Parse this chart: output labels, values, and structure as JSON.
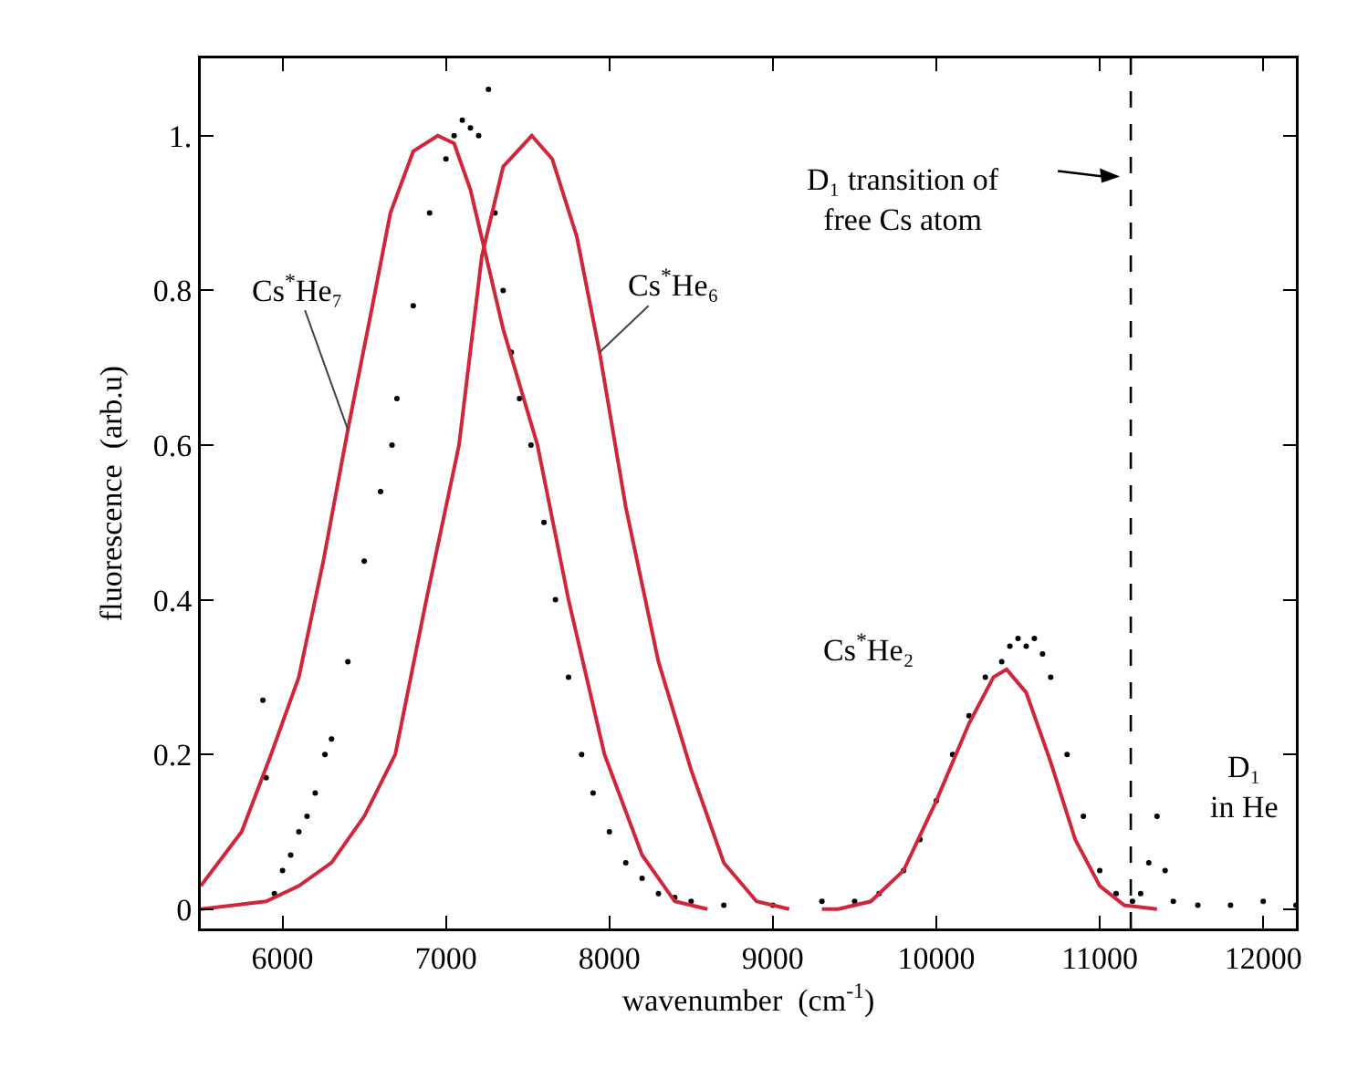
{
  "chart_data": {
    "type": "line",
    "xlabel": "wavenumber  (cm$^{-1}$)",
    "ylabel": "fluorescence  (arb.u)",
    "xlim": [
      5500,
      12200
    ],
    "xticks": [
      6000,
      7000,
      8000,
      9000,
      10000,
      11000,
      12000
    ],
    "ylim": [
      -0.025,
      1.1
    ],
    "yticks": [
      0,
      0.2,
      0.4,
      0.6,
      0.8,
      {
        "value": 1,
        "label": "1."
      }
    ],
    "grid": false,
    "series": [
      {
        "type": "scatter",
        "marker": "circle",
        "color": "#000000",
        "x": [
          5880,
          5900,
          5950,
          6000,
          6050,
          6100,
          6150,
          6200,
          6260,
          6300,
          6400,
          6500,
          6600,
          6670,
          6700,
          6800,
          6900,
          7000,
          7050,
          7100,
          7150,
          7200,
          7260,
          7300,
          7350,
          7400,
          7450,
          7520,
          7600,
          7670,
          7750,
          7830,
          7900,
          8000,
          8100,
          8200,
          8300,
          8400,
          8500,
          8700,
          9000,
          9300,
          9500,
          9650,
          9800,
          9900,
          10000,
          10100,
          10200,
          10300,
          10400,
          10450,
          10500,
          10550,
          10600,
          10650,
          10700,
          10800,
          10900,
          11000,
          11100,
          11200,
          11250,
          11300,
          11350,
          11400,
          11450,
          11600,
          11800,
          12000,
          12200
        ],
        "values": [
          0.27,
          0.17,
          0.02,
          0.05,
          0.07,
          0.1,
          0.12,
          0.15,
          0.2,
          0.22,
          0.32,
          0.45,
          0.54,
          0.6,
          0.66,
          0.78,
          0.9,
          0.97,
          1.0,
          1.02,
          1.01,
          1.0,
          1.06,
          0.9,
          0.8,
          0.72,
          0.66,
          0.6,
          0.5,
          0.4,
          0.3,
          0.2,
          0.15,
          0.1,
          0.06,
          0.04,
          0.02,
          0.015,
          0.01,
          0.005,
          0.005,
          0.01,
          0.01,
          0.02,
          0.05,
          0.09,
          0.14,
          0.2,
          0.25,
          0.3,
          0.32,
          0.34,
          0.35,
          0.34,
          0.35,
          0.33,
          0.3,
          0.2,
          0.12,
          0.05,
          0.02,
          0.01,
          0.02,
          0.06,
          0.12,
          0.05,
          0.01,
          0.005,
          0.005,
          0.01,
          0.005
        ]
      },
      {
        "color": "#d0263b",
        "x": [
          5500,
          5750,
          5930,
          6100,
          6250,
          6400,
          6550,
          6660,
          6800,
          6950,
          7050,
          7150,
          7350,
          7560,
          7750,
          7970,
          8200,
          8400,
          8600
        ],
        "values": [
          0.03,
          0.1,
          0.2,
          0.3,
          0.45,
          0.62,
          0.78,
          0.9,
          0.98,
          1.0,
          0.99,
          0.93,
          0.75,
          0.6,
          0.4,
          0.2,
          0.07,
          0.01,
          0
        ]
      },
      {
        "color": "#d0263b",
        "x": [
          5500,
          5900,
          6100,
          6300,
          6500,
          6690,
          6880,
          7080,
          7220,
          7350,
          7525,
          7650,
          7800,
          7940,
          8100,
          8300,
          8500,
          8700,
          8900,
          9100
        ],
        "values": [
          0,
          0.01,
          0.03,
          0.06,
          0.12,
          0.2,
          0.4,
          0.6,
          0.845,
          0.96,
          1.0,
          0.97,
          0.87,
          0.72,
          0.52,
          0.32,
          0.18,
          0.06,
          0.01,
          0
        ]
      },
      {
        "color": "#d0263b",
        "x": [
          9300,
          9400,
          9600,
          9800,
          10000,
          10200,
          10350,
          10430,
          10550,
          10700,
          10760,
          10850,
          11000,
          11150,
          11350
        ],
        "values": [
          0,
          0,
          0.01,
          0.05,
          0.14,
          0.24,
          0.3,
          0.31,
          0.28,
          0.19,
          0.15,
          0.09,
          0.03,
          0.005,
          0
        ]
      }
    ],
    "ref_lines": [
      {
        "axis": "x",
        "value": 11190,
        "label": "D₁ transition of\nfree Cs atom",
        "line_style": "dashed",
        "color": "#000000"
      }
    ],
    "annotations": [
      {
        "text": "Cs$^{*}$He₇",
        "x": 6400,
        "y": 0.62
      },
      {
        "text": "Cs$^{*}$He₆",
        "x": 7940,
        "y": 0.72
      },
      {
        "text": "Cs$^{*}$He₂",
        "x": 10430,
        "y": 0.31
      },
      {
        "text": "D₁\nin He",
        "x": 11350,
        "y": 0.12
      }
    ]
  }
}
